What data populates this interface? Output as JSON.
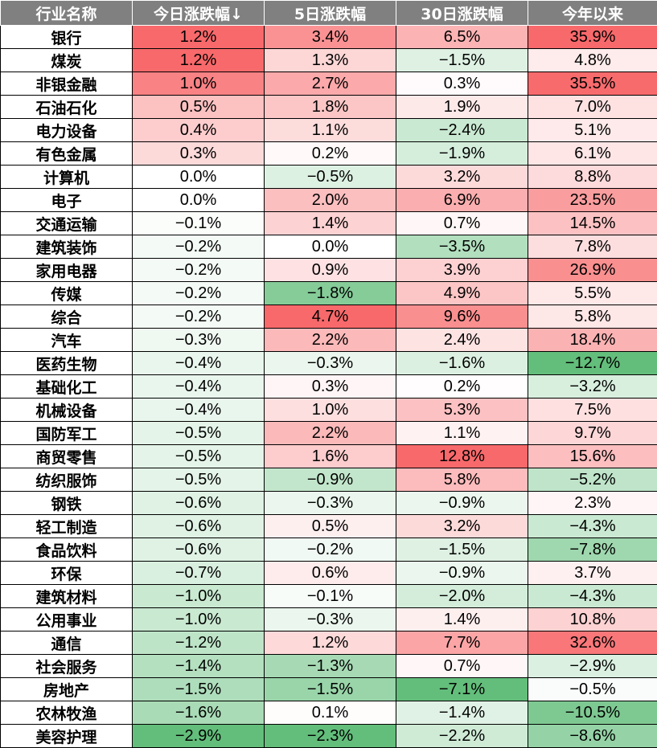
{
  "headers": [
    "行业名称",
    "今日涨跌幅↓",
    "5日涨跌幅",
    "30日涨跌幅",
    "今年以来"
  ],
  "colors": {
    "header_bg": "#808080",
    "positive": "#F8696B",
    "negative": "#63BE7B",
    "neutral": "#FFFFFF"
  },
  "chart_data": {
    "type": "table",
    "columns": [
      "行业名称",
      "今日涨跌幅↓",
      "5日涨跌幅",
      "30日涨跌幅",
      "今年以来"
    ],
    "rows": [
      {
        "name": "银行",
        "values": [
          "1.2%",
          "3.4%",
          "6.5%",
          "35.9%"
        ]
      },
      {
        "name": "煤炭",
        "values": [
          "1.2%",
          "1.3%",
          "−1.5%",
          "4.8%"
        ]
      },
      {
        "name": "非银金融",
        "values": [
          "1.0%",
          "2.7%",
          "0.3%",
          "35.5%"
        ]
      },
      {
        "name": "石油石化",
        "values": [
          "0.5%",
          "1.8%",
          "1.9%",
          "7.0%"
        ]
      },
      {
        "name": "电力设备",
        "values": [
          "0.4%",
          "1.1%",
          "−2.4%",
          "5.1%"
        ]
      },
      {
        "name": "有色金属",
        "values": [
          "0.3%",
          "0.2%",
          "−1.9%",
          "6.1%"
        ]
      },
      {
        "name": "计算机",
        "values": [
          "0.0%",
          "−0.5%",
          "3.2%",
          "8.8%"
        ]
      },
      {
        "name": "电子",
        "values": [
          "0.0%",
          "2.0%",
          "6.9%",
          "23.5%"
        ]
      },
      {
        "name": "交通运输",
        "values": [
          "−0.1%",
          "1.4%",
          "0.7%",
          "14.5%"
        ]
      },
      {
        "name": "建筑装饰",
        "values": [
          "−0.2%",
          "0.0%",
          "−3.5%",
          "7.8%"
        ]
      },
      {
        "name": "家用电器",
        "values": [
          "−0.2%",
          "0.9%",
          "3.9%",
          "26.9%"
        ]
      },
      {
        "name": "传媒",
        "values": [
          "−0.2%",
          "−1.8%",
          "4.9%",
          "5.5%"
        ]
      },
      {
        "name": "综合",
        "values": [
          "−0.2%",
          "4.7%",
          "9.6%",
          "5.8%"
        ]
      },
      {
        "name": "汽车",
        "values": [
          "−0.3%",
          "2.2%",
          "2.4%",
          "18.4%"
        ]
      },
      {
        "name": "医药生物",
        "values": [
          "−0.4%",
          "−0.3%",
          "−1.6%",
          "−12.7%"
        ]
      },
      {
        "name": "基础化工",
        "values": [
          "−0.4%",
          "0.3%",
          "0.2%",
          "−3.2%"
        ]
      },
      {
        "name": "机械设备",
        "values": [
          "−0.4%",
          "1.0%",
          "5.3%",
          "7.5%"
        ]
      },
      {
        "name": "国防军工",
        "values": [
          "−0.5%",
          "2.2%",
          "1.1%",
          "9.7%"
        ]
      },
      {
        "name": "商贸零售",
        "values": [
          "−0.5%",
          "1.6%",
          "12.8%",
          "15.6%"
        ]
      },
      {
        "name": "纺织服饰",
        "values": [
          "−0.5%",
          "−0.9%",
          "5.8%",
          "−5.2%"
        ]
      },
      {
        "name": "钢铁",
        "values": [
          "−0.6%",
          "−0.3%",
          "−0.9%",
          "2.3%"
        ]
      },
      {
        "name": "轻工制造",
        "values": [
          "−0.6%",
          "0.5%",
          "3.2%",
          "−4.3%"
        ]
      },
      {
        "name": "食品饮料",
        "values": [
          "−0.6%",
          "−0.2%",
          "−1.5%",
          "−7.8%"
        ]
      },
      {
        "name": "环保",
        "values": [
          "−0.7%",
          "0.6%",
          "−0.9%",
          "3.7%"
        ]
      },
      {
        "name": "建筑材料",
        "values": [
          "−1.0%",
          "−0.1%",
          "−2.0%",
          "−4.3%"
        ]
      },
      {
        "name": "公用事业",
        "values": [
          "−1.0%",
          "−0.3%",
          "1.4%",
          "10.8%"
        ]
      },
      {
        "name": "通信",
        "values": [
          "−1.2%",
          "1.2%",
          "7.7%",
          "32.6%"
        ]
      },
      {
        "name": "社会服务",
        "values": [
          "−1.4%",
          "−1.3%",
          "0.7%",
          "−2.9%"
        ]
      },
      {
        "name": "房地产",
        "values": [
          "−1.5%",
          "−1.5%",
          "−7.1%",
          "−0.5%"
        ]
      },
      {
        "name": "农林牧渔",
        "values": [
          "−1.6%",
          "0.1%",
          "−1.4%",
          "−10.5%"
        ]
      },
      {
        "name": "美容护理",
        "values": [
          "−2.9%",
          "−2.3%",
          "−2.2%",
          "−8.6%"
        ]
      }
    ]
  }
}
